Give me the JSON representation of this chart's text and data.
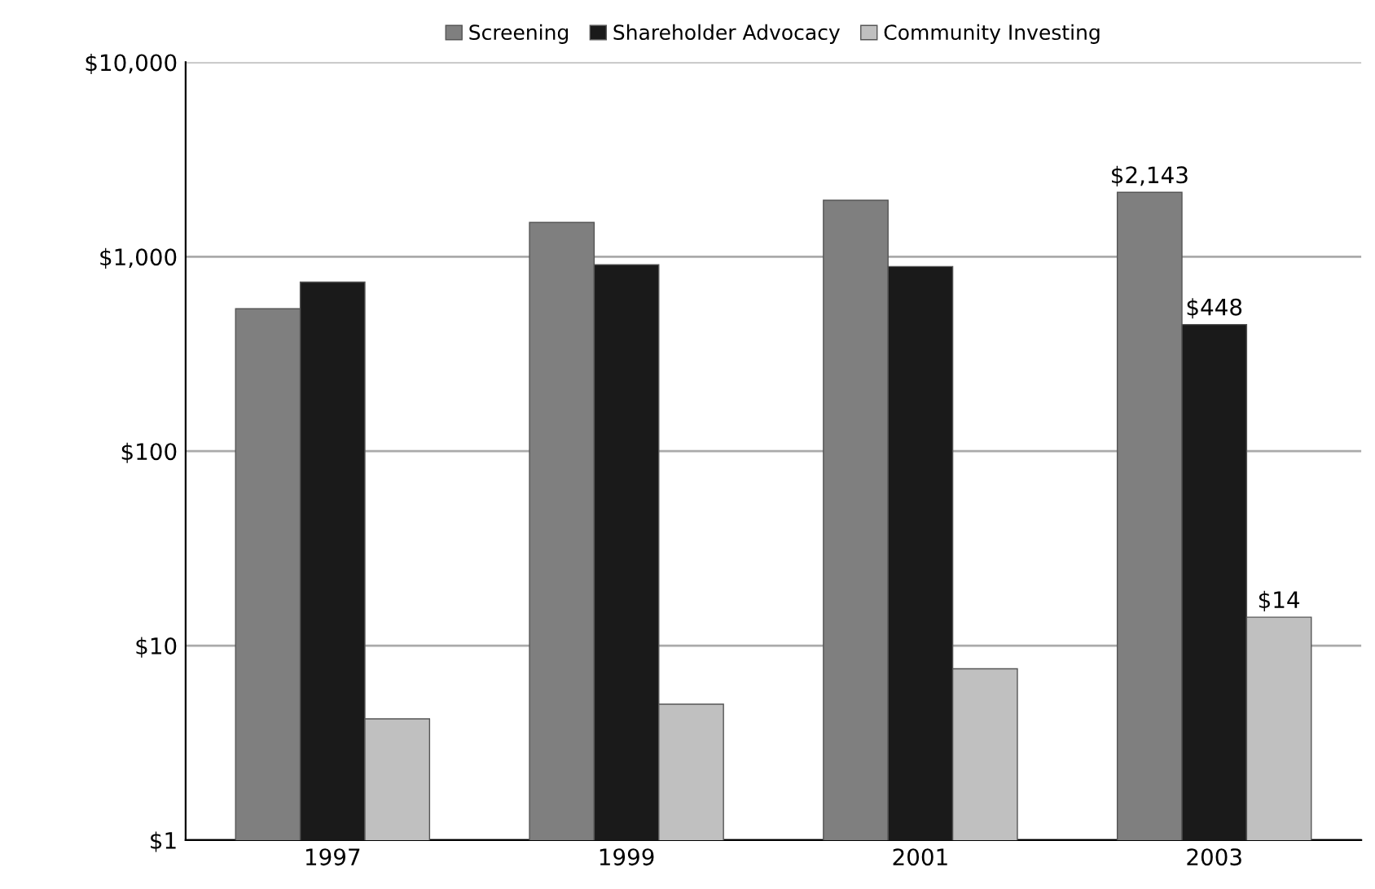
{
  "chart_data": {
    "type": "bar",
    "categories": [
      "1997",
      "1999",
      "2001",
      "2003"
    ],
    "series": [
      {
        "name": "Screening",
        "color": "#7f7f7f",
        "values": [
          540,
          1500,
          1950,
          2143
        ],
        "value_labels": [
          null,
          null,
          null,
          "$2,143"
        ]
      },
      {
        "name": "Shareholder Advocacy",
        "color": "#1a1a1a",
        "values": [
          740,
          910,
          890,
          448
        ],
        "value_labels": [
          null,
          null,
          null,
          "$448"
        ]
      },
      {
        "name": "Community Investing",
        "color": "#c0c0c0",
        "values": [
          4.2,
          5,
          7.6,
          14
        ],
        "value_labels": [
          null,
          null,
          null,
          "$14"
        ]
      }
    ],
    "log": "y",
    "ylim": [
      1,
      10000
    ],
    "yticks": [
      {
        "value": 1,
        "label": "$1"
      },
      {
        "value": 10,
        "label": "$10"
      },
      {
        "value": 100,
        "label": "$100"
      },
      {
        "value": 1000,
        "label": "$1,000"
      },
      {
        "value": 10000,
        "label": "$10,000"
      }
    ],
    "grid": "y",
    "legend": "top"
  }
}
